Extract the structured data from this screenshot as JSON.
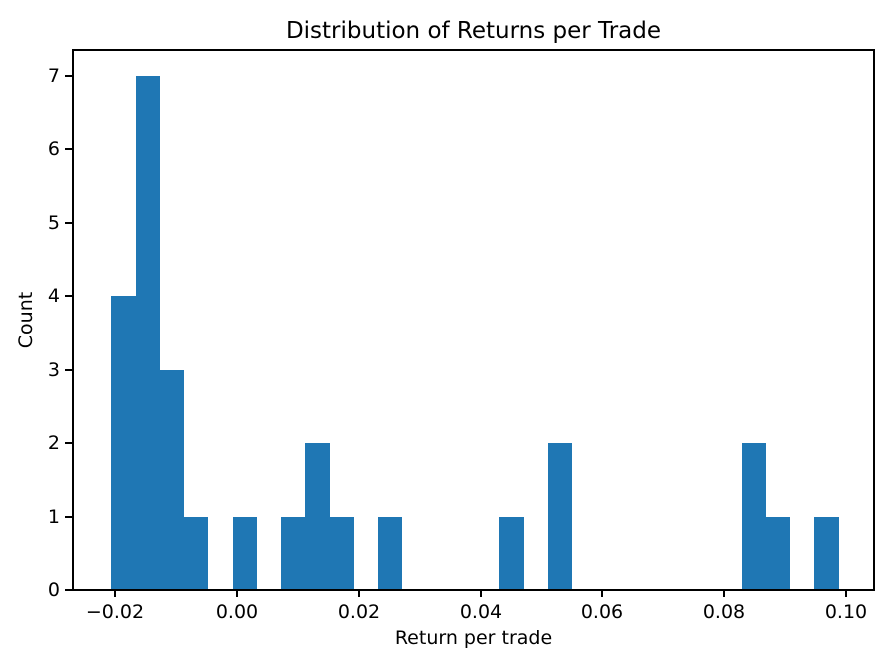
{
  "chart_data": {
    "type": "bar",
    "variant": "histogram",
    "title": "Distribution of Returns per Trade",
    "xlabel": "Return per trade",
    "ylabel": "Count",
    "bar_color": "#1f77b4",
    "axis_color": "#000000",
    "text_color": "#000000",
    "background_color": "#ffffff",
    "grid": false,
    "legend_position": "none",
    "xlim": [
      -0.0269,
      0.1046
    ],
    "ylim": [
      0,
      7.35
    ],
    "x_ticks": [
      {
        "value": -0.02,
        "label": "−0.02"
      },
      {
        "value": 0.0,
        "label": "0.00"
      },
      {
        "value": 0.02,
        "label": "0.02"
      },
      {
        "value": 0.04,
        "label": "0.04"
      },
      {
        "value": 0.06,
        "label": "0.06"
      },
      {
        "value": 0.08,
        "label": "0.08"
      },
      {
        "value": 0.1,
        "label": "0.10"
      }
    ],
    "y_ticks": [
      {
        "value": 0,
        "label": "0"
      },
      {
        "value": 1,
        "label": "1"
      },
      {
        "value": 2,
        "label": "2"
      },
      {
        "value": 3,
        "label": "3"
      },
      {
        "value": 4,
        "label": "4"
      },
      {
        "value": 5,
        "label": "5"
      },
      {
        "value": 6,
        "label": "6"
      },
      {
        "value": 7,
        "label": "7"
      }
    ],
    "bins": {
      "bin_edges": [
        -0.0206,
        -0.01662,
        -0.01264,
        -0.00866,
        -0.00468,
        -0.0007,
        0.00328,
        0.00726,
        0.01124,
        0.01522,
        0.0192,
        0.02318,
        0.02716,
        0.03114,
        0.03512,
        0.0391,
        0.04308,
        0.04706,
        0.05104,
        0.05502,
        0.059,
        0.06298,
        0.06696,
        0.07094,
        0.07492,
        0.0789,
        0.08288,
        0.08686,
        0.09084,
        0.09482,
        0.0988
      ],
      "counts": [
        4,
        7,
        3,
        1,
        0,
        1,
        0,
        1,
        2,
        1,
        0,
        1,
        0,
        0,
        0,
        0,
        1,
        0,
        2,
        0,
        0,
        0,
        0,
        0,
        0,
        0,
        2,
        1,
        0,
        1
      ]
    }
  }
}
